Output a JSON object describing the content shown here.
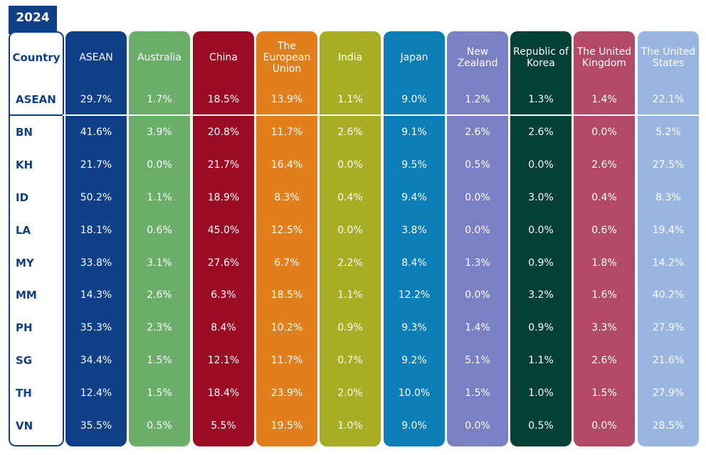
{
  "year": "2024",
  "header": {
    "country_label": "Country"
  },
  "colors": [
    "#0f3f86",
    "#6aae6a",
    "#9c0b24",
    "#e17f1c",
    "#a8ae23",
    "#0b7eb8",
    "#7b80c4",
    "#044037",
    "#b24a67",
    "#99b6e1"
  ],
  "chart_data": {
    "type": "table",
    "columns": [
      "ASEAN",
      "Australia",
      "China",
      "The European Union",
      "India",
      "Japan",
      "New Zealand",
      "Republic of Korea",
      "The United Kingdom",
      "The United States"
    ],
    "column_lines": [
      [
        "ASEAN"
      ],
      [
        "Australia"
      ],
      [
        "China"
      ],
      [
        "The",
        "European",
        "Union"
      ],
      [
        "India"
      ],
      [
        "Japan"
      ],
      [
        "New",
        "Zealand"
      ],
      [
        "Republic of",
        "Korea"
      ],
      [
        "The United",
        "Kingdom"
      ],
      [
        "The United",
        "States"
      ]
    ],
    "rows": [
      {
        "country": "ASEAN",
        "values": [
          "29.7%",
          "1.7%",
          "18.5%",
          "13.9%",
          "1.1%",
          "9.0%",
          "1.2%",
          "1.3%",
          "1.4%",
          "22.1%"
        ]
      },
      {
        "country": "BN",
        "values": [
          "41.6%",
          "3.9%",
          "20.8%",
          "11.7%",
          "2.6%",
          "9.1%",
          "2.6%",
          "2.6%",
          "0.0%",
          "5.2%"
        ]
      },
      {
        "country": "KH",
        "values": [
          "21.7%",
          "0.0%",
          "21.7%",
          "16.4%",
          "0.0%",
          "9.5%",
          "0.5%",
          "0.0%",
          "2.6%",
          "27.5%"
        ]
      },
      {
        "country": "ID",
        "values": [
          "50.2%",
          "1.1%",
          "18.9%",
          "8.3%",
          "0.4%",
          "9.4%",
          "0.0%",
          "3.0%",
          "0.4%",
          "8.3%"
        ]
      },
      {
        "country": "LA",
        "values": [
          "18.1%",
          "0.6%",
          "45.0%",
          "12.5%",
          "0.0%",
          "3.8%",
          "0.0%",
          "0.0%",
          "0.6%",
          "19.4%"
        ]
      },
      {
        "country": "MY",
        "values": [
          "33.8%",
          "3.1%",
          "27.6%",
          "6.7%",
          "2.2%",
          "8.4%",
          "1.3%",
          "0.9%",
          "1.8%",
          "14.2%"
        ]
      },
      {
        "country": "MM",
        "values": [
          "14.3%",
          "2.6%",
          "6.3%",
          "18.5%",
          "1.1%",
          "12.2%",
          "0.0%",
          "3.2%",
          "1.6%",
          "40.2%"
        ]
      },
      {
        "country": "PH",
        "values": [
          "35.3%",
          "2.3%",
          "8.4%",
          "10.2%",
          "0.9%",
          "9.3%",
          "1.4%",
          "0.9%",
          "3.3%",
          "27.9%"
        ]
      },
      {
        "country": "SG",
        "values": [
          "34.4%",
          "1.5%",
          "12.1%",
          "11.7%",
          "0.7%",
          "9.2%",
          "5.1%",
          "1.1%",
          "2.6%",
          "21.6%"
        ]
      },
      {
        "country": "TH",
        "values": [
          "12.4%",
          "1.5%",
          "18.4%",
          "23.9%",
          "2.0%",
          "10.0%",
          "1.5%",
          "1.0%",
          "1.5%",
          "27.9%"
        ]
      },
      {
        "country": "VN",
        "values": [
          "35.5%",
          "0.5%",
          "5.5%",
          "19.5%",
          "1.0%",
          "9.0%",
          "0.0%",
          "0.5%",
          "0.0%",
          "28.5%"
        ]
      }
    ]
  }
}
